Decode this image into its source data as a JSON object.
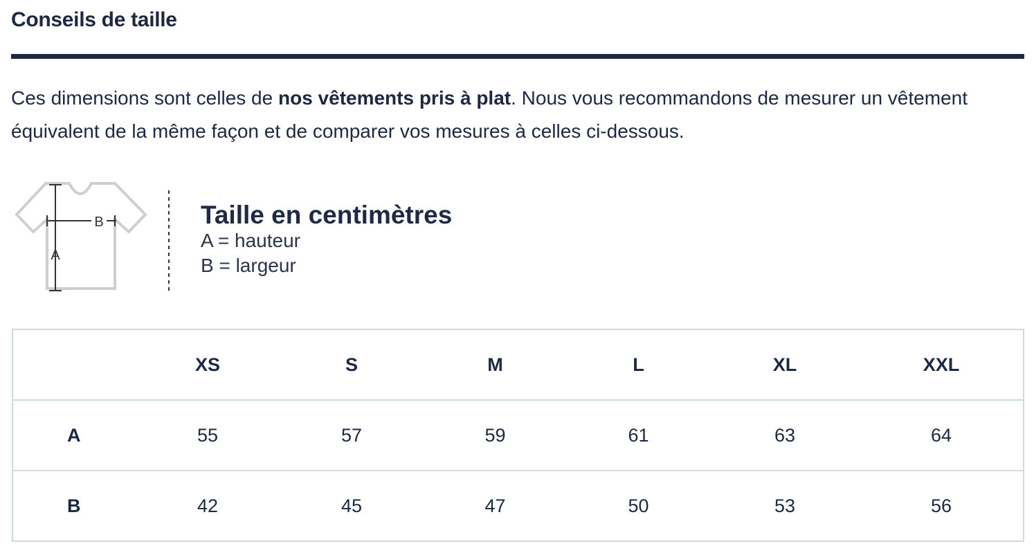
{
  "header": {
    "title": "Conseils de taille"
  },
  "intro": {
    "before": "Ces dimensions sont celles de ",
    "bold": "nos vêtements pris à plat",
    "after": ". Nous vous recommandons de mesurer un vêtement équivalent de la même façon et de comparer vos mesures à celles ci-dessous."
  },
  "legend": {
    "diagram_height_label": "A",
    "diagram_width_label": "B",
    "title": "Taille en centimètres",
    "lines": [
      "A = hauteur",
      "B = largeur"
    ]
  },
  "table": {
    "columns": [
      "XS",
      "S",
      "M",
      "L",
      "XL",
      "XXL"
    ],
    "rows": [
      {
        "label": "A",
        "values": [
          55,
          57,
          59,
          61,
          63,
          64
        ]
      },
      {
        "label": "B",
        "values": [
          42,
          45,
          47,
          50,
          53,
          56
        ]
      }
    ]
  }
}
